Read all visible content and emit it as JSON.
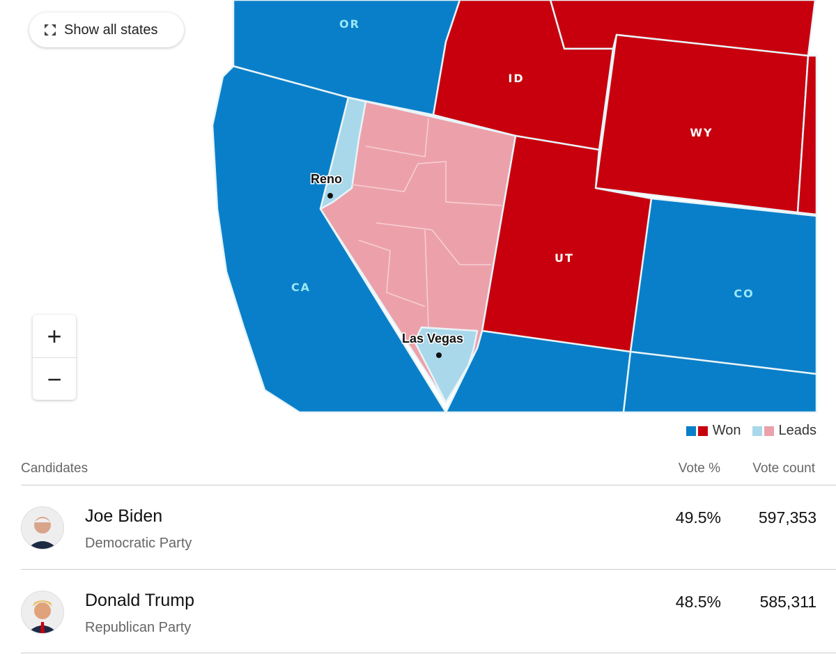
{
  "map": {
    "show_all_label": "Show all states",
    "show_all_icon": "expand-icon",
    "zoom_in": "+",
    "zoom_out": "−",
    "states": {
      "OR": "OR",
      "ID": "ID",
      "WY": "WY",
      "UT": "UT",
      "CA": "CA",
      "CO": "CO"
    },
    "cities": {
      "reno": "Reno",
      "las_vegas": "Las Vegas"
    },
    "colors": {
      "dem_won": "#0a7fc9",
      "rep_won": "#c8000d",
      "dem_leads": "#a8d8ea",
      "rep_leads": "#eca1aa"
    }
  },
  "legend": {
    "won": "Won",
    "leads": "Leads"
  },
  "table": {
    "headers": {
      "candidates": "Candidates",
      "vote_pct": "Vote %",
      "vote_count": "Vote count"
    },
    "rows": [
      {
        "name": "Joe Biden",
        "party": "Democratic Party",
        "pct": "49.5%",
        "count": "597,353"
      },
      {
        "name": "Donald Trump",
        "party": "Republican Party",
        "pct": "48.5%",
        "count": "585,311"
      }
    ]
  }
}
